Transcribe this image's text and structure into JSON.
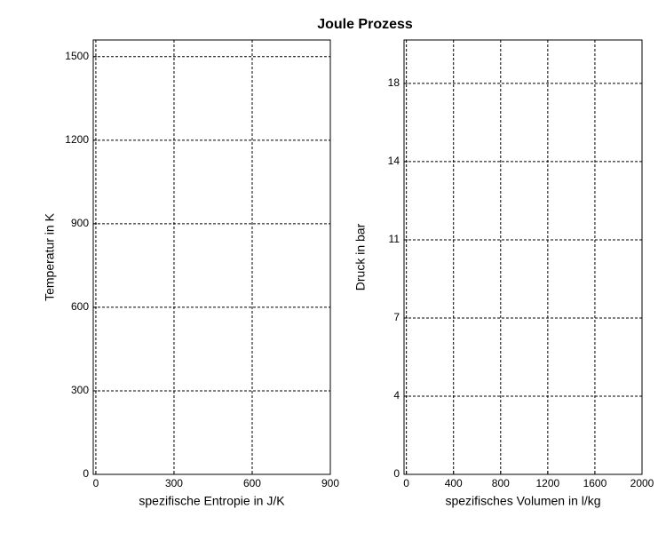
{
  "title": "Joule Prozess",
  "chart_data": [
    {
      "type": "line",
      "xlabel": "spezifische Entropie in J/K",
      "ylabel": "Temperatur in K",
      "xlim": [
        -10,
        900
      ],
      "ylim": [
        0,
        1560
      ],
      "xticks": [
        0,
        300,
        600,
        900
      ],
      "yticks": [
        0,
        300,
        600,
        900,
        1200,
        1500
      ],
      "grid": true,
      "series": []
    },
    {
      "type": "line",
      "xlabel": "spezifisches Volumen in l/kg",
      "ylabel": "Druck in bar",
      "xlim": [
        -20,
        2000
      ],
      "ylim": [
        0,
        20
      ],
      "xticks": [
        0,
        400,
        800,
        1200,
        1600,
        2000
      ],
      "yticks": [
        0,
        {
          "value": 3.6,
          "label": "4"
        },
        {
          "value": 7.2,
          "label": "7"
        },
        {
          "value": 10.8,
          "label": "11"
        },
        {
          "value": 14.4,
          "label": "14"
        },
        18
      ],
      "grid": true,
      "series": []
    }
  ]
}
